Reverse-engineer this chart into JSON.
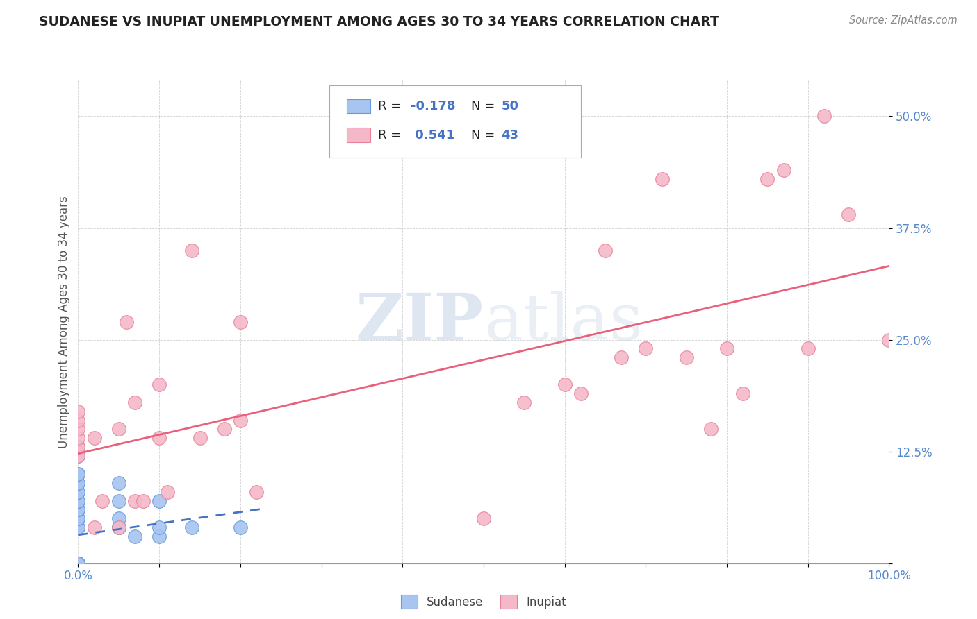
{
  "title": "SUDANESE VS INUPIAT UNEMPLOYMENT AMONG AGES 30 TO 34 YEARS CORRELATION CHART",
  "source": "Source: ZipAtlas.com",
  "ylabel": "Unemployment Among Ages 30 to 34 years",
  "xlim": [
    0.0,
    1.0
  ],
  "ylim": [
    0.0,
    0.54
  ],
  "x_ticks": [
    0.0,
    0.1,
    0.2,
    0.3,
    0.4,
    0.5,
    0.6,
    0.7,
    0.8,
    0.9,
    1.0
  ],
  "x_tick_labels": [
    "0.0%",
    "",
    "",
    "",
    "",
    "",
    "",
    "",
    "",
    "",
    "100.0%"
  ],
  "y_ticks": [
    0.0,
    0.125,
    0.25,
    0.375,
    0.5
  ],
  "y_tick_labels": [
    "",
    "12.5%",
    "25.0%",
    "37.5%",
    "50.0%"
  ],
  "watermark_zip": "ZIP",
  "watermark_atlas": "atlas",
  "sudanese_color": "#a8c4f0",
  "inupiat_color": "#f5b8c8",
  "sudanese_edge_color": "#6699dd",
  "inupiat_edge_color": "#e8809a",
  "sudanese_line_color": "#4472c4",
  "inupiat_line_color": "#e8607a",
  "background_color": "#ffffff",
  "text_color_dark": "#222222",
  "text_color_blue": "#4472c4",
  "text_color_axis": "#5588cc",
  "sudanese_x": [
    0.0,
    0.0,
    0.0,
    0.0,
    0.0,
    0.0,
    0.0,
    0.0,
    0.0,
    0.0,
    0.0,
    0.0,
    0.0,
    0.0,
    0.0,
    0.0,
    0.0,
    0.0,
    0.0,
    0.0,
    0.0,
    0.0,
    0.0,
    0.0,
    0.0,
    0.0,
    0.0,
    0.0,
    0.0,
    0.0,
    0.0,
    0.0,
    0.0,
    0.0,
    0.0,
    0.0,
    0.0,
    0.0,
    0.0,
    0.05,
    0.05,
    0.05,
    0.05,
    0.05,
    0.07,
    0.1,
    0.1,
    0.1,
    0.14,
    0.2
  ],
  "sudanese_y": [
    0.0,
    0.0,
    0.0,
    0.0,
    0.0,
    0.0,
    0.0,
    0.0,
    0.0,
    0.0,
    0.0,
    0.0,
    0.0,
    0.0,
    0.0,
    0.0,
    0.0,
    0.0,
    0.0,
    0.0,
    0.0,
    0.0,
    0.0,
    0.04,
    0.04,
    0.05,
    0.05,
    0.06,
    0.06,
    0.07,
    0.07,
    0.07,
    0.08,
    0.08,
    0.09,
    0.09,
    0.1,
    0.1,
    0.12,
    0.04,
    0.04,
    0.05,
    0.07,
    0.09,
    0.03,
    0.03,
    0.04,
    0.07,
    0.04,
    0.04
  ],
  "inupiat_x": [
    0.0,
    0.0,
    0.0,
    0.0,
    0.0,
    0.0,
    0.0,
    0.02,
    0.02,
    0.03,
    0.05,
    0.05,
    0.06,
    0.07,
    0.07,
    0.08,
    0.1,
    0.1,
    0.11,
    0.14,
    0.15,
    0.18,
    0.2,
    0.2,
    0.22,
    0.5,
    0.55,
    0.6,
    0.62,
    0.65,
    0.67,
    0.7,
    0.72,
    0.75,
    0.78,
    0.8,
    0.82,
    0.85,
    0.87,
    0.9,
    0.92,
    0.95,
    1.0
  ],
  "inupiat_y": [
    0.12,
    0.13,
    0.13,
    0.14,
    0.15,
    0.16,
    0.17,
    0.04,
    0.14,
    0.07,
    0.04,
    0.15,
    0.27,
    0.07,
    0.18,
    0.07,
    0.14,
    0.2,
    0.08,
    0.35,
    0.14,
    0.15,
    0.16,
    0.27,
    0.08,
    0.05,
    0.18,
    0.2,
    0.19,
    0.35,
    0.23,
    0.24,
    0.43,
    0.23,
    0.15,
    0.24,
    0.19,
    0.43,
    0.44,
    0.24,
    0.5,
    0.39,
    0.25
  ]
}
